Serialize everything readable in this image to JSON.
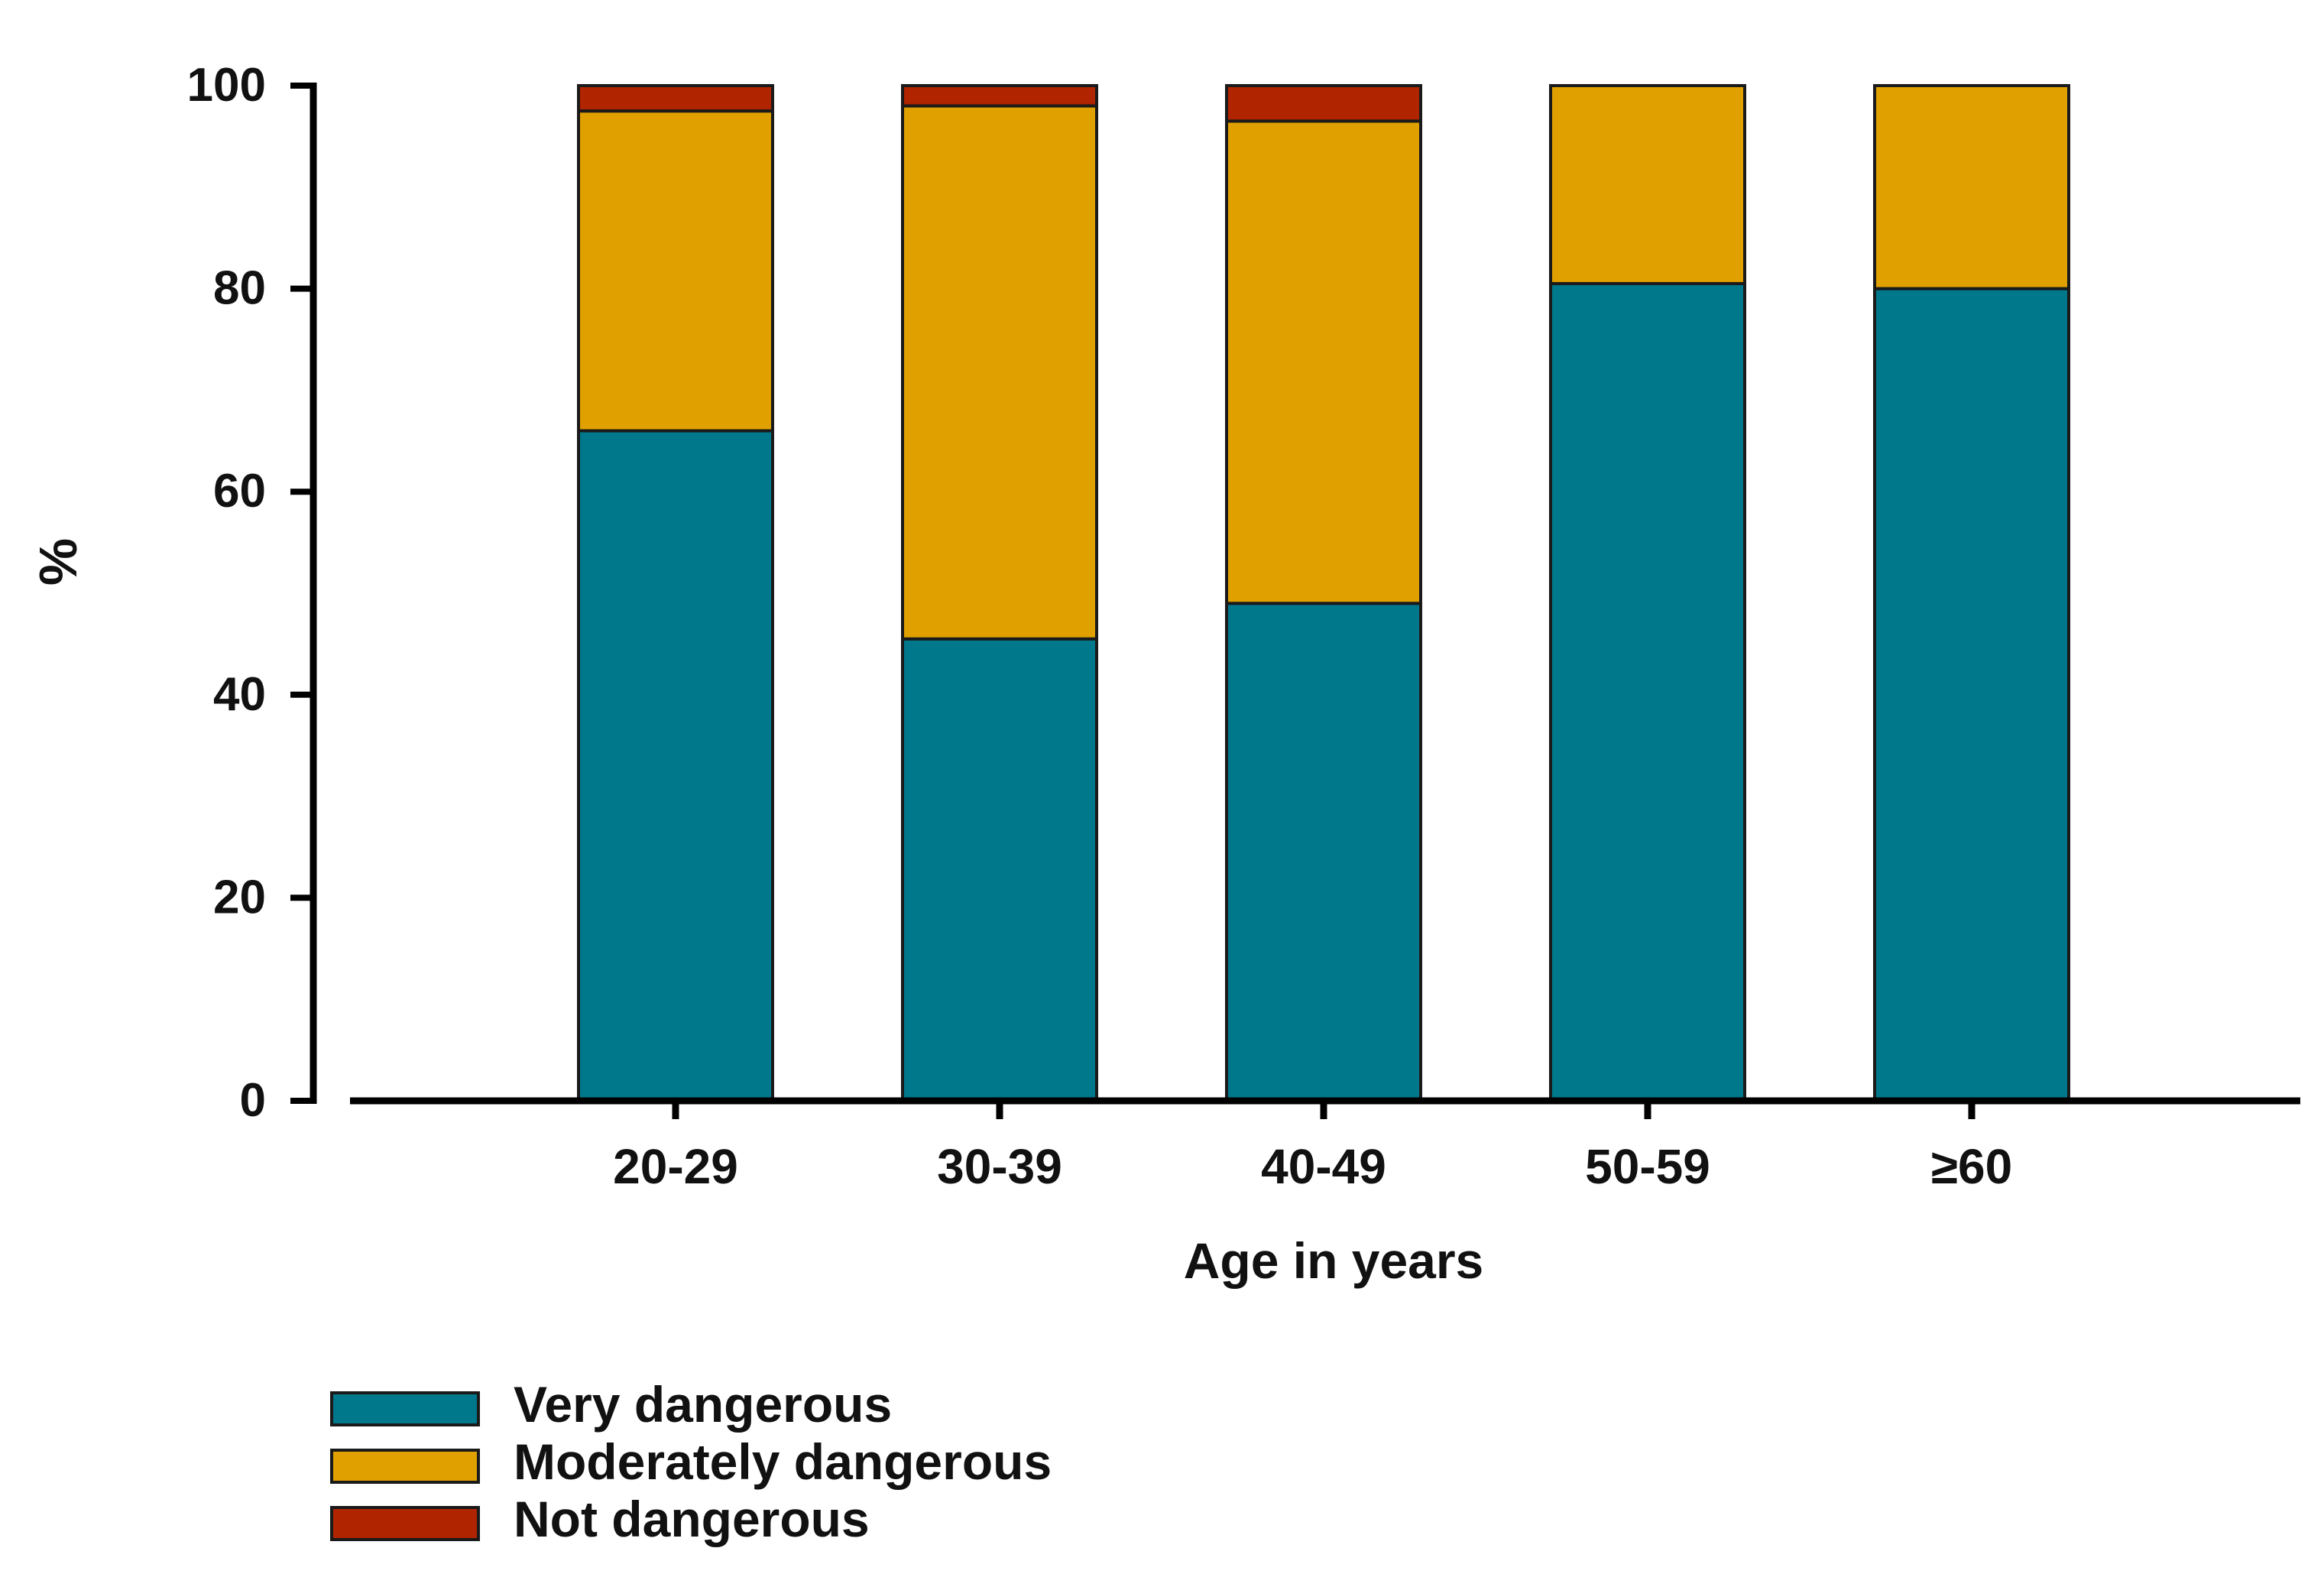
{
  "chart_data": {
    "type": "bar",
    "stacked": true,
    "title": "",
    "xlabel": "Age in years",
    "ylabel": "%",
    "ylim": [
      0,
      100
    ],
    "yticks": [
      "0",
      "20",
      "40",
      "60",
      "80",
      "100"
    ],
    "categories": [
      "20-29",
      "30-39",
      "40-49",
      "50-59",
      "≥60"
    ],
    "series": [
      {
        "name": "Very dangerous",
        "color": "#00788c",
        "values": [
          66,
          45.5,
          49,
          80.5,
          80
        ]
      },
      {
        "name": "Moderately dangerous",
        "color": "#e0a000",
        "values": [
          31.5,
          52.5,
          47.5,
          19.5,
          20
        ]
      },
      {
        "name": "Not dangerous",
        "color": "#b02400",
        "values": [
          2.5,
          2,
          3.5,
          0,
          0
        ]
      }
    ],
    "legend_position": "bottom-left"
  }
}
